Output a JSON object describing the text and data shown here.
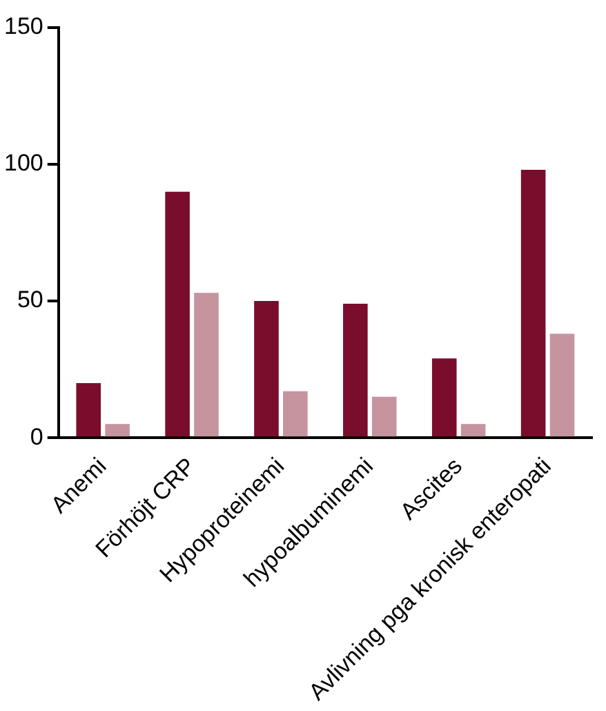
{
  "chart_data": {
    "type": "bar",
    "categories": [
      "Anemi",
      "Förhöjt CRP",
      "Hypoproteinemi",
      "hypoalbuminemi",
      "Ascites",
      "Avlivning pga kronisk enteropati"
    ],
    "series": [
      {
        "color": "#7b0d2c",
        "values": [
          20,
          90,
          50,
          49,
          29,
          98
        ]
      },
      {
        "color": "#c6949f",
        "values": [
          5,
          53,
          17,
          15,
          5,
          38
        ]
      }
    ],
    "ylim": [
      0,
      150
    ],
    "yticks": [
      0,
      50,
      100,
      150
    ],
    "grid": false,
    "legend": false
  }
}
